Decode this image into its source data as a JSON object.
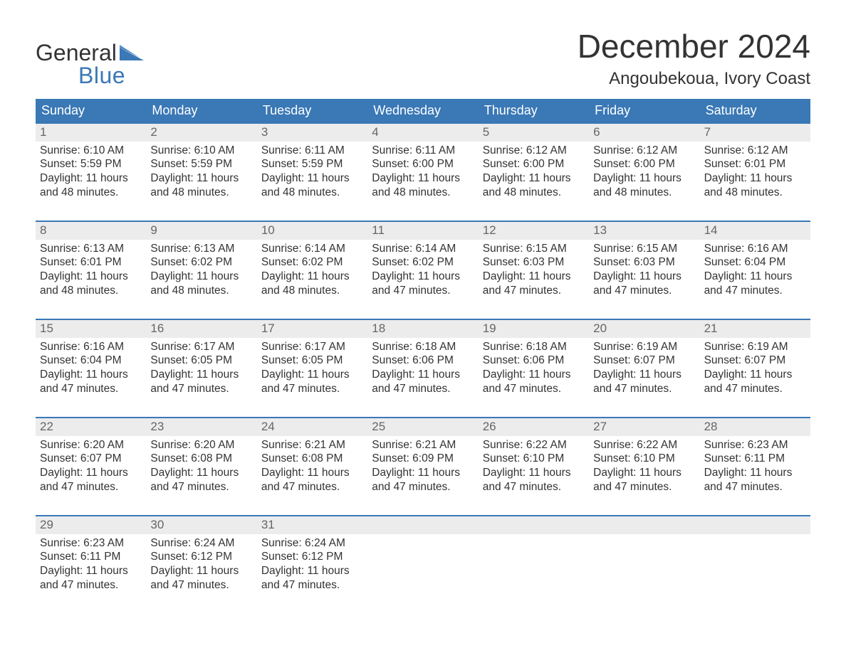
{
  "brand": {
    "word1": "General",
    "word2": "Blue",
    "text_color": "#333333",
    "accent_color": "#3a78b6"
  },
  "title": "December 2024",
  "location": "Angoubekoua, Ivory Coast",
  "styling": {
    "header_bg": "#3a78b6",
    "header_fg": "#ffffff",
    "date_bar_bg": "#ececec",
    "date_bar_fg": "#666666",
    "body_fg": "#333333",
    "week_divider": "#3a78b6",
    "page_bg": "#ffffff",
    "title_fontsize": 46,
    "location_fontsize": 24,
    "dayheader_fontsize": 18,
    "cell_fontsize": 15.5
  },
  "day_names": [
    "Sunday",
    "Monday",
    "Tuesday",
    "Wednesday",
    "Thursday",
    "Friday",
    "Saturday"
  ],
  "weeks": [
    [
      {
        "date": "1",
        "sunrise": "Sunrise: 6:10 AM",
        "sunset": "Sunset: 5:59 PM",
        "day1": "Daylight: 11 hours",
        "day2": "and 48 minutes."
      },
      {
        "date": "2",
        "sunrise": "Sunrise: 6:10 AM",
        "sunset": "Sunset: 5:59 PM",
        "day1": "Daylight: 11 hours",
        "day2": "and 48 minutes."
      },
      {
        "date": "3",
        "sunrise": "Sunrise: 6:11 AM",
        "sunset": "Sunset: 5:59 PM",
        "day1": "Daylight: 11 hours",
        "day2": "and 48 minutes."
      },
      {
        "date": "4",
        "sunrise": "Sunrise: 6:11 AM",
        "sunset": "Sunset: 6:00 PM",
        "day1": "Daylight: 11 hours",
        "day2": "and 48 minutes."
      },
      {
        "date": "5",
        "sunrise": "Sunrise: 6:12 AM",
        "sunset": "Sunset: 6:00 PM",
        "day1": "Daylight: 11 hours",
        "day2": "and 48 minutes."
      },
      {
        "date": "6",
        "sunrise": "Sunrise: 6:12 AM",
        "sunset": "Sunset: 6:00 PM",
        "day1": "Daylight: 11 hours",
        "day2": "and 48 minutes."
      },
      {
        "date": "7",
        "sunrise": "Sunrise: 6:12 AM",
        "sunset": "Sunset: 6:01 PM",
        "day1": "Daylight: 11 hours",
        "day2": "and 48 minutes."
      }
    ],
    [
      {
        "date": "8",
        "sunrise": "Sunrise: 6:13 AM",
        "sunset": "Sunset: 6:01 PM",
        "day1": "Daylight: 11 hours",
        "day2": "and 48 minutes."
      },
      {
        "date": "9",
        "sunrise": "Sunrise: 6:13 AM",
        "sunset": "Sunset: 6:02 PM",
        "day1": "Daylight: 11 hours",
        "day2": "and 48 minutes."
      },
      {
        "date": "10",
        "sunrise": "Sunrise: 6:14 AM",
        "sunset": "Sunset: 6:02 PM",
        "day1": "Daylight: 11 hours",
        "day2": "and 48 minutes."
      },
      {
        "date": "11",
        "sunrise": "Sunrise: 6:14 AM",
        "sunset": "Sunset: 6:02 PM",
        "day1": "Daylight: 11 hours",
        "day2": "and 47 minutes."
      },
      {
        "date": "12",
        "sunrise": "Sunrise: 6:15 AM",
        "sunset": "Sunset: 6:03 PM",
        "day1": "Daylight: 11 hours",
        "day2": "and 47 minutes."
      },
      {
        "date": "13",
        "sunrise": "Sunrise: 6:15 AM",
        "sunset": "Sunset: 6:03 PM",
        "day1": "Daylight: 11 hours",
        "day2": "and 47 minutes."
      },
      {
        "date": "14",
        "sunrise": "Sunrise: 6:16 AM",
        "sunset": "Sunset: 6:04 PM",
        "day1": "Daylight: 11 hours",
        "day2": "and 47 minutes."
      }
    ],
    [
      {
        "date": "15",
        "sunrise": "Sunrise: 6:16 AM",
        "sunset": "Sunset: 6:04 PM",
        "day1": "Daylight: 11 hours",
        "day2": "and 47 minutes."
      },
      {
        "date": "16",
        "sunrise": "Sunrise: 6:17 AM",
        "sunset": "Sunset: 6:05 PM",
        "day1": "Daylight: 11 hours",
        "day2": "and 47 minutes."
      },
      {
        "date": "17",
        "sunrise": "Sunrise: 6:17 AM",
        "sunset": "Sunset: 6:05 PM",
        "day1": "Daylight: 11 hours",
        "day2": "and 47 minutes."
      },
      {
        "date": "18",
        "sunrise": "Sunrise: 6:18 AM",
        "sunset": "Sunset: 6:06 PM",
        "day1": "Daylight: 11 hours",
        "day2": "and 47 minutes."
      },
      {
        "date": "19",
        "sunrise": "Sunrise: 6:18 AM",
        "sunset": "Sunset: 6:06 PM",
        "day1": "Daylight: 11 hours",
        "day2": "and 47 minutes."
      },
      {
        "date": "20",
        "sunrise": "Sunrise: 6:19 AM",
        "sunset": "Sunset: 6:07 PM",
        "day1": "Daylight: 11 hours",
        "day2": "and 47 minutes."
      },
      {
        "date": "21",
        "sunrise": "Sunrise: 6:19 AM",
        "sunset": "Sunset: 6:07 PM",
        "day1": "Daylight: 11 hours",
        "day2": "and 47 minutes."
      }
    ],
    [
      {
        "date": "22",
        "sunrise": "Sunrise: 6:20 AM",
        "sunset": "Sunset: 6:07 PM",
        "day1": "Daylight: 11 hours",
        "day2": "and 47 minutes."
      },
      {
        "date": "23",
        "sunrise": "Sunrise: 6:20 AM",
        "sunset": "Sunset: 6:08 PM",
        "day1": "Daylight: 11 hours",
        "day2": "and 47 minutes."
      },
      {
        "date": "24",
        "sunrise": "Sunrise: 6:21 AM",
        "sunset": "Sunset: 6:08 PM",
        "day1": "Daylight: 11 hours",
        "day2": "and 47 minutes."
      },
      {
        "date": "25",
        "sunrise": "Sunrise: 6:21 AM",
        "sunset": "Sunset: 6:09 PM",
        "day1": "Daylight: 11 hours",
        "day2": "and 47 minutes."
      },
      {
        "date": "26",
        "sunrise": "Sunrise: 6:22 AM",
        "sunset": "Sunset: 6:10 PM",
        "day1": "Daylight: 11 hours",
        "day2": "and 47 minutes."
      },
      {
        "date": "27",
        "sunrise": "Sunrise: 6:22 AM",
        "sunset": "Sunset: 6:10 PM",
        "day1": "Daylight: 11 hours",
        "day2": "and 47 minutes."
      },
      {
        "date": "28",
        "sunrise": "Sunrise: 6:23 AM",
        "sunset": "Sunset: 6:11 PM",
        "day1": "Daylight: 11 hours",
        "day2": "and 47 minutes."
      }
    ],
    [
      {
        "date": "29",
        "sunrise": "Sunrise: 6:23 AM",
        "sunset": "Sunset: 6:11 PM",
        "day1": "Daylight: 11 hours",
        "day2": "and 47 minutes."
      },
      {
        "date": "30",
        "sunrise": "Sunrise: 6:24 AM",
        "sunset": "Sunset: 6:12 PM",
        "day1": "Daylight: 11 hours",
        "day2": "and 47 minutes."
      },
      {
        "date": "31",
        "sunrise": "Sunrise: 6:24 AM",
        "sunset": "Sunset: 6:12 PM",
        "day1": "Daylight: 11 hours",
        "day2": "and 47 minutes."
      },
      null,
      null,
      null,
      null
    ]
  ]
}
